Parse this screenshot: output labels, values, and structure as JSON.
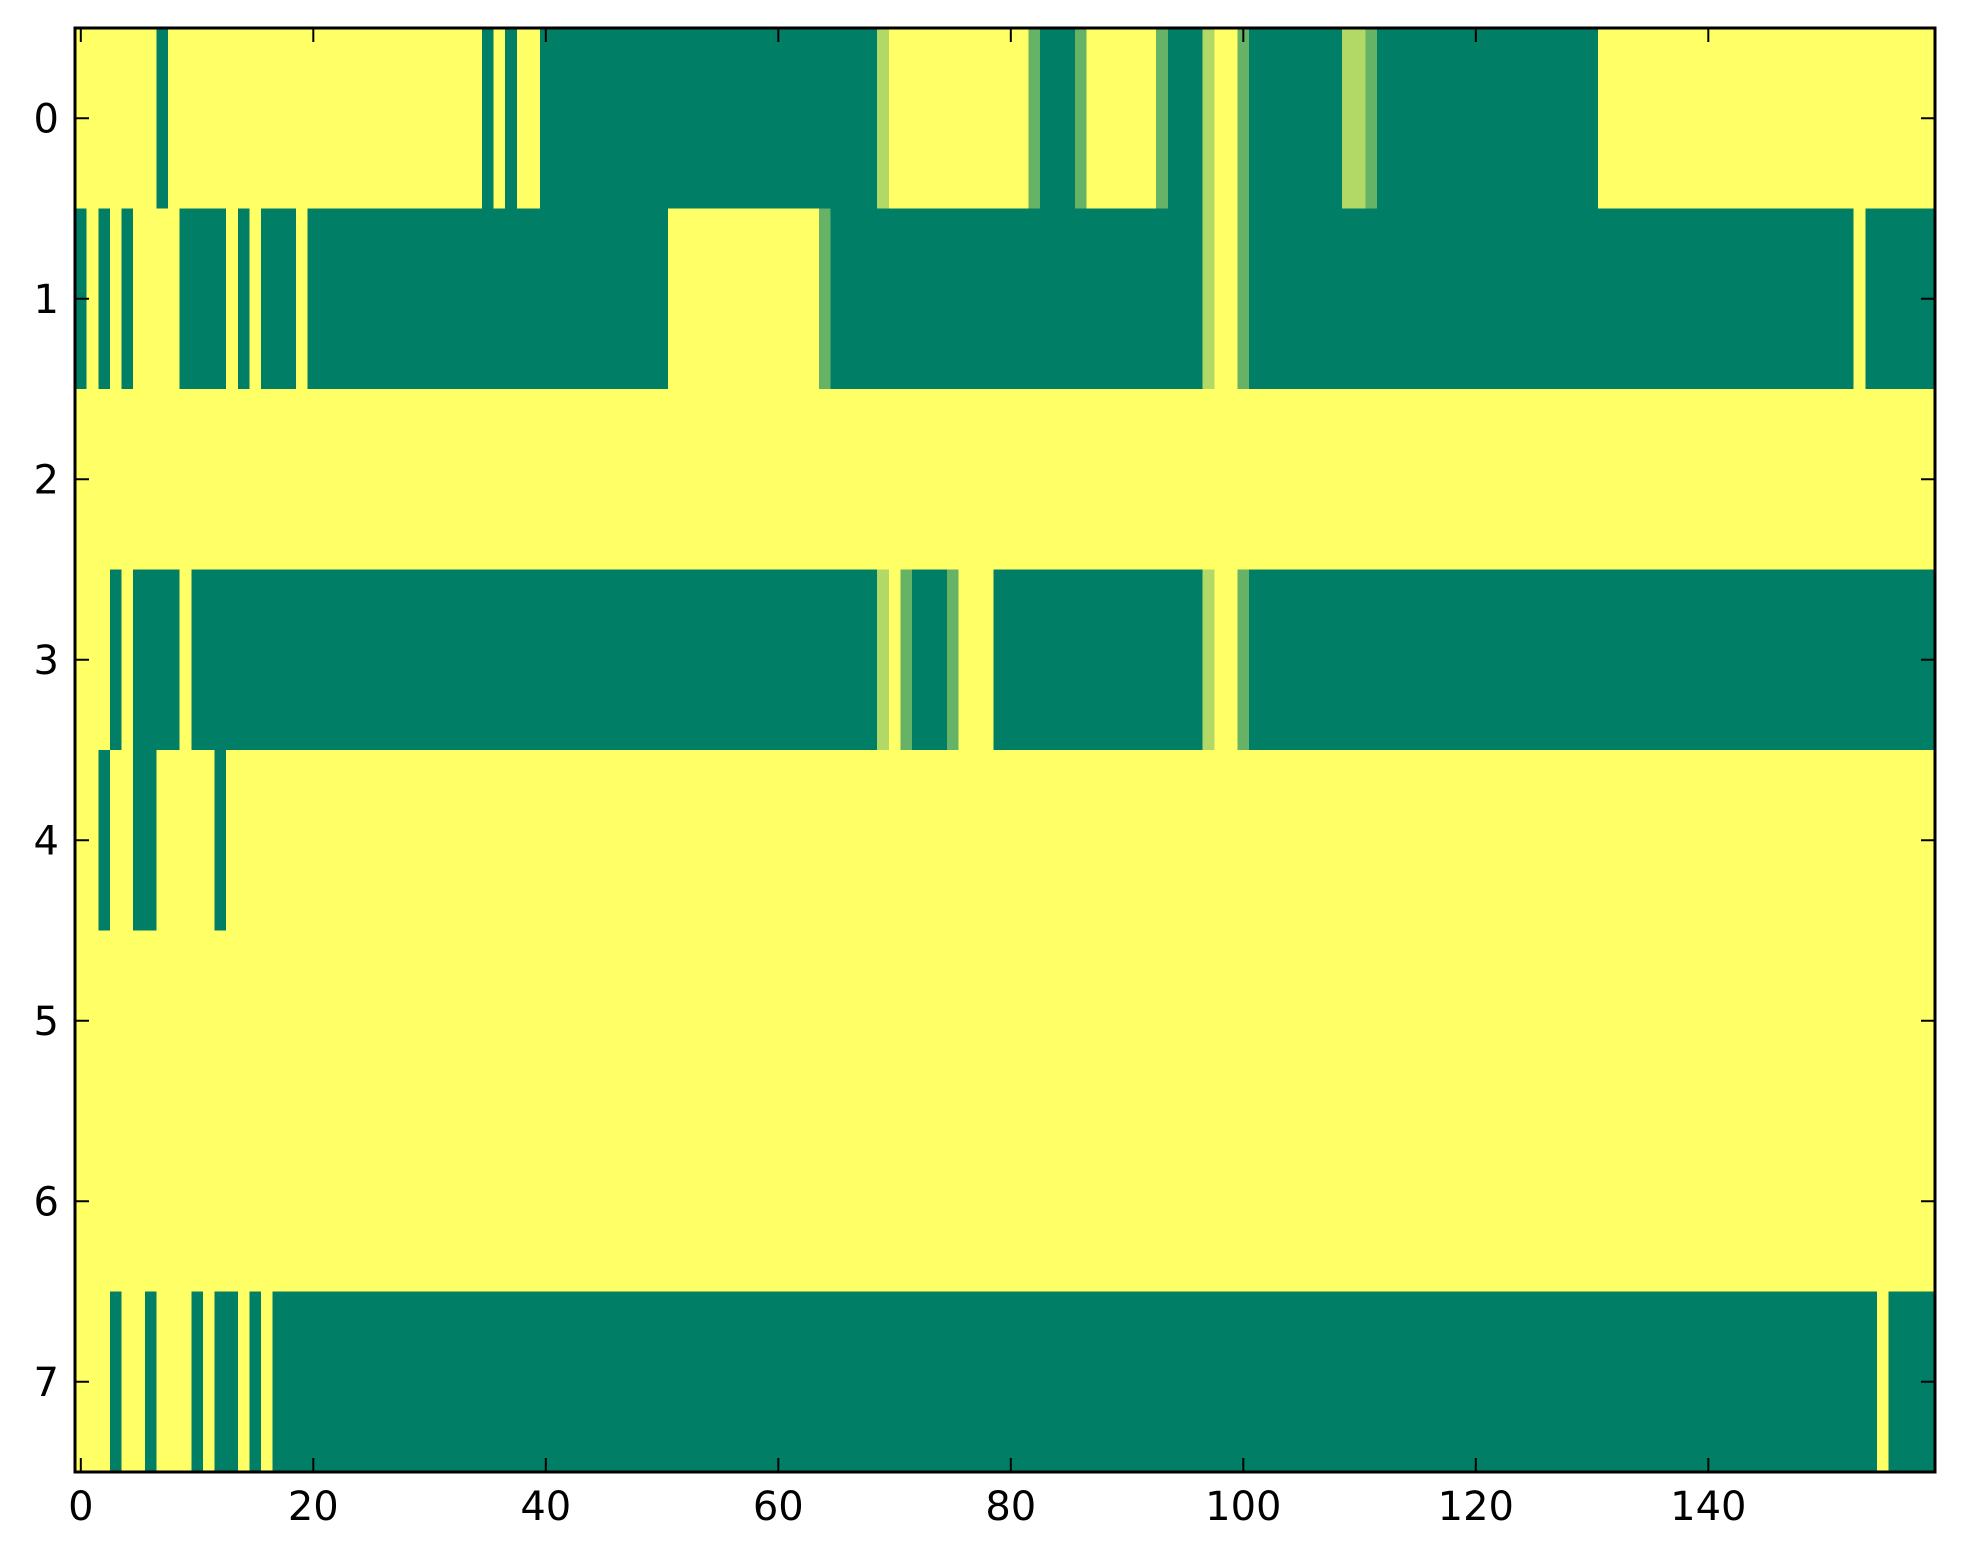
{
  "chart_data": {
    "type": "heatmap",
    "title": "",
    "xlabel": "",
    "ylabel": "",
    "xlim": [
      -0.5,
      159.5
    ],
    "ylim": [
      7.5,
      -0.5
    ],
    "grid": false,
    "legend": "none",
    "n_columns": 160,
    "rows": [
      0,
      1,
      2,
      3,
      4,
      5,
      6,
      7
    ],
    "colormap": [
      "#007f66",
      "#66b266",
      "#b2d966",
      "#ffff66"
    ],
    "value_range": [
      0,
      1
    ],
    "background_value": 1,
    "segments": [
      [
        [
          7,
          7,
          0
        ],
        [
          35,
          35,
          0
        ],
        [
          37,
          37,
          0
        ],
        [
          40,
          68,
          0
        ],
        [
          69,
          69,
          0.85
        ],
        [
          82,
          82,
          0.5
        ],
        [
          83,
          85,
          0
        ],
        [
          86,
          86,
          0.5
        ],
        [
          93,
          93,
          0.5
        ],
        [
          94,
          96,
          0
        ],
        [
          97,
          97,
          0.85
        ],
        [
          100,
          100,
          0.5
        ],
        [
          101,
          108,
          0
        ],
        [
          109,
          110,
          0.85
        ],
        [
          111,
          111,
          0.5
        ],
        [
          112,
          130,
          0
        ]
      ],
      [
        [
          -0.5,
          0,
          0
        ],
        [
          2,
          2,
          0
        ],
        [
          4,
          4,
          0
        ],
        [
          9,
          12,
          0
        ],
        [
          14,
          14,
          0
        ],
        [
          16,
          18,
          0
        ],
        [
          20,
          49,
          0
        ],
        [
          50,
          50,
          0.15
        ],
        [
          64,
          64,
          0.5
        ],
        [
          65,
          96,
          0
        ],
        [
          97,
          97,
          0.85
        ],
        [
          100,
          100,
          0.5
        ],
        [
          101,
          152,
          0
        ],
        [
          154,
          159,
          0
        ]
      ],
      [],
      [
        [
          3,
          3,
          0
        ],
        [
          5,
          8,
          0
        ],
        [
          10,
          68,
          0
        ],
        [
          69,
          69,
          0.85
        ],
        [
          71,
          71,
          0.5
        ],
        [
          72,
          74,
          0
        ],
        [
          75,
          75,
          0.5
        ],
        [
          79,
          96,
          0
        ],
        [
          97,
          97,
          0.85
        ],
        [
          100,
          100,
          0.5
        ],
        [
          101,
          159,
          0
        ]
      ],
      [
        [
          2,
          2,
          0
        ],
        [
          5,
          6,
          0
        ],
        [
          12,
          12,
          0
        ]
      ],
      [],
      [],
      [
        [
          3,
          3,
          0
        ],
        [
          6,
          6,
          0
        ],
        [
          10,
          10,
          0
        ],
        [
          12,
          13,
          0
        ],
        [
          15,
          15,
          0
        ],
        [
          17,
          154,
          0
        ],
        [
          156,
          159,
          0
        ]
      ]
    ]
  },
  "x_ticks": [
    {
      "value": 0,
      "label": "0"
    },
    {
      "value": 20,
      "label": "20"
    },
    {
      "value": 40,
      "label": "40"
    },
    {
      "value": 60,
      "label": "60"
    },
    {
      "value": 80,
      "label": "80"
    },
    {
      "value": 100,
      "label": "100"
    },
    {
      "value": 120,
      "label": "120"
    },
    {
      "value": 140,
      "label": "140"
    }
  ],
  "y_ticks": [
    {
      "value": 0,
      "label": "0"
    },
    {
      "value": 1,
      "label": "1"
    },
    {
      "value": 2,
      "label": "2"
    },
    {
      "value": 3,
      "label": "3"
    },
    {
      "value": 4,
      "label": "4"
    },
    {
      "value": 5,
      "label": "5"
    },
    {
      "value": 6,
      "label": "6"
    },
    {
      "value": 7,
      "label": "7"
    }
  ]
}
